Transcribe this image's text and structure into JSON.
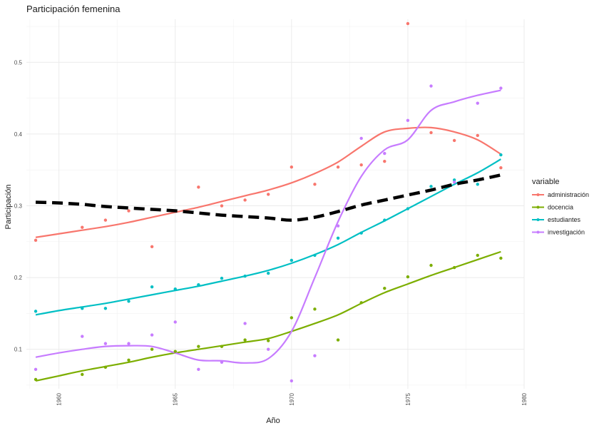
{
  "chart_data": {
    "type": "scatter",
    "title": "Participación femenina",
    "xlabel": "Año",
    "ylabel": "Participación",
    "xlim": [
      1958.6,
      1980
    ],
    "ylim": [
      0.045,
      0.56
    ],
    "x_ticks": [
      1960,
      1965,
      1970,
      1975,
      1980
    ],
    "x_tick_labels": [
      "1960",
      "1965",
      "1970",
      "1975",
      "1980"
    ],
    "y_ticks": [
      0.1,
      0.2,
      0.3,
      0.4,
      0.5
    ],
    "y_tick_labels": [
      "0.1",
      "0.2",
      "0.3",
      "0.4",
      "0.5"
    ],
    "grid": true,
    "legend": {
      "title": "variable",
      "position": "right"
    },
    "series": [
      {
        "name": "administración",
        "color": "#F8766D",
        "x": [
          1959,
          1961,
          1962,
          1963,
          1964,
          1966,
          1967,
          1968,
          1969,
          1970,
          1971,
          1972,
          1973,
          1974,
          1975,
          1976,
          1977,
          1978,
          1979
        ],
        "y": [
          0.252,
          0.27,
          0.28,
          0.293,
          0.243,
          0.326,
          0.3,
          0.308,
          0.316,
          0.354,
          0.33,
          0.354,
          0.357,
          0.362,
          0.554,
          0.402,
          0.391,
          0.398,
          0.353
        ],
        "smooth_x": [
          1959,
          1960,
          1961,
          1962,
          1963,
          1964,
          1965,
          1966,
          1967,
          1968,
          1969,
          1970,
          1971,
          1972,
          1973,
          1974,
          1975,
          1976,
          1977,
          1978,
          1979
        ],
        "smooth_y": [
          0.256,
          0.261,
          0.266,
          0.271,
          0.277,
          0.284,
          0.291,
          0.298,
          0.306,
          0.314,
          0.322,
          0.332,
          0.345,
          0.361,
          0.383,
          0.403,
          0.408,
          0.409,
          0.403,
          0.392,
          0.372
        ]
      },
      {
        "name": "docencia",
        "color": "#7CAE00",
        "x": [
          1959,
          1961,
          1962,
          1963,
          1964,
          1965,
          1966,
          1967,
          1968,
          1969,
          1970,
          1971,
          1972,
          1973,
          1974,
          1975,
          1976,
          1977,
          1978,
          1979
        ],
        "y": [
          0.058,
          0.065,
          0.075,
          0.085,
          0.1,
          0.097,
          0.104,
          0.104,
          0.113,
          0.112,
          0.144,
          0.156,
          0.113,
          0.165,
          0.185,
          0.201,
          0.217,
          0.214,
          0.231,
          0.227
        ],
        "smooth_x": [
          1959,
          1960,
          1961,
          1962,
          1963,
          1964,
          1965,
          1966,
          1967,
          1968,
          1969,
          1970,
          1971,
          1972,
          1973,
          1974,
          1975,
          1976,
          1977,
          1978,
          1979
        ],
        "smooth_y": [
          0.056,
          0.063,
          0.07,
          0.076,
          0.082,
          0.089,
          0.095,
          0.1,
          0.105,
          0.11,
          0.115,
          0.125,
          0.136,
          0.148,
          0.164,
          0.179,
          0.191,
          0.203,
          0.214,
          0.225,
          0.236
        ]
      },
      {
        "name": "estudiantes",
        "color": "#00BFC4",
        "x": [
          1959,
          1961,
          1962,
          1963,
          1964,
          1965,
          1966,
          1967,
          1968,
          1969,
          1970,
          1971,
          1972,
          1973,
          1974,
          1975,
          1976,
          1977,
          1978,
          1979
        ],
        "y": [
          0.153,
          0.157,
          0.157,
          0.167,
          0.187,
          0.184,
          0.19,
          0.199,
          0.202,
          0.206,
          0.224,
          0.231,
          0.255,
          0.262,
          0.28,
          0.296,
          0.327,
          0.336,
          0.33,
          0.371
        ],
        "smooth_x": [
          1959,
          1960,
          1961,
          1962,
          1963,
          1964,
          1965,
          1966,
          1967,
          1968,
          1969,
          1970,
          1971,
          1972,
          1973,
          1974,
          1975,
          1976,
          1977,
          1978,
          1979
        ],
        "smooth_y": [
          0.148,
          0.154,
          0.159,
          0.164,
          0.17,
          0.176,
          0.182,
          0.188,
          0.195,
          0.202,
          0.21,
          0.22,
          0.232,
          0.246,
          0.263,
          0.279,
          0.296,
          0.313,
          0.33,
          0.346,
          0.365
        ]
      },
      {
        "name": "investigación",
        "color": "#C77CFF",
        "x": [
          1959,
          1961,
          1962,
          1963,
          1964,
          1965,
          1966,
          1967,
          1968,
          1969,
          1970,
          1971,
          1972,
          1973,
          1974,
          1975,
          1976,
          1977,
          1978,
          1979
        ],
        "y": [
          0.072,
          0.118,
          0.108,
          0.108,
          0.12,
          0.138,
          0.072,
          0.082,
          0.136,
          0.1,
          0.056,
          0.091,
          0.272,
          0.394,
          0.373,
          0.419,
          0.467,
          0.333,
          0.443,
          0.464
        ],
        "smooth_x": [
          1959,
          1960,
          1961,
          1962,
          1963,
          1964,
          1965,
          1966,
          1967,
          1968,
          1969,
          1970,
          1971,
          1972,
          1973,
          1974,
          1975,
          1976,
          1977,
          1978,
          1979
        ],
        "smooth_y": [
          0.089,
          0.095,
          0.1,
          0.104,
          0.105,
          0.104,
          0.095,
          0.085,
          0.084,
          0.081,
          0.087,
          0.125,
          0.2,
          0.278,
          0.341,
          0.378,
          0.392,
          0.433,
          0.445,
          0.454,
          0.461
        ]
      }
    ],
    "dashed_line": {
      "color": "#000000",
      "x": [
        1959,
        1960,
        1961,
        1962,
        1963,
        1964,
        1965,
        1966,
        1967,
        1968,
        1969,
        1970,
        1971,
        1972,
        1973,
        1974,
        1975,
        1976,
        1977,
        1978,
        1979
      ],
      "y": [
        0.305,
        0.304,
        0.302,
        0.299,
        0.297,
        0.295,
        0.293,
        0.29,
        0.287,
        0.285,
        0.283,
        0.28,
        0.284,
        0.292,
        0.301,
        0.308,
        0.315,
        0.322,
        0.33,
        0.336,
        0.343
      ]
    }
  }
}
